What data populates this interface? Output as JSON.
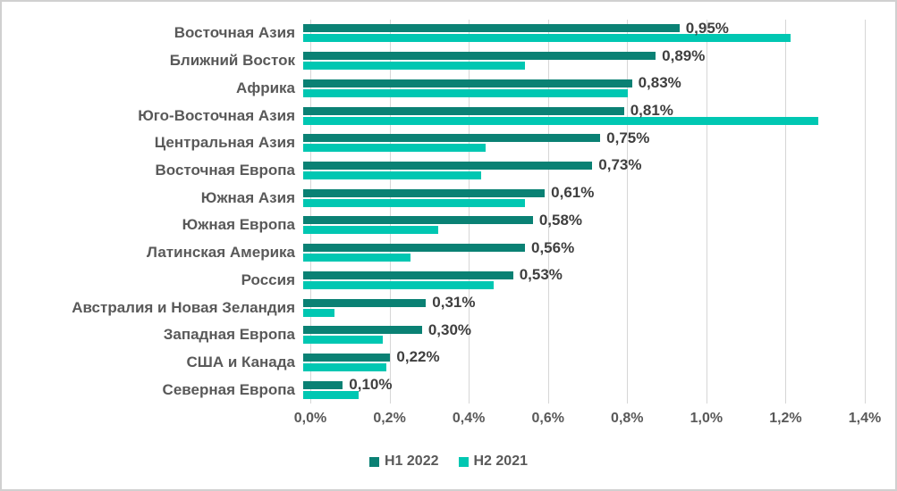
{
  "colors": {
    "series_h1_2022": "#0a8174",
    "series_h2_2021": "#00c7b2",
    "gridline": "#d6d6d6",
    "category_label": "#595959",
    "data_label": "#3f3f3f",
    "axis_label": "#595959",
    "frame_border": "#d0d0d0",
    "background": "#ffffff"
  },
  "chart_data": {
    "type": "bar",
    "orientation": "horizontal",
    "title": "",
    "xlabel": "",
    "ylabel": "",
    "xlim": [
      0,
      1.4
    ],
    "grid": true,
    "legend_position": "bottom",
    "x_ticks": [
      "0,0%",
      "0,2%",
      "0,4%",
      "0,6%",
      "0,8%",
      "1,0%",
      "1,2%",
      "1,4%"
    ],
    "categories": [
      "Восточная Азия",
      "Ближний Восток",
      "Африка",
      "Юго-Восточная Азия",
      "Центральная Азия",
      "Восточная Европа",
      "Южная Азия",
      "Южная Европа",
      "Латинская Америка",
      "Россия",
      "Австралия и Новая Зеландия",
      "Западная Европа",
      "США и Канада",
      "Северная Европа"
    ],
    "series": [
      {
        "name": "H1 2022",
        "color": "#0a8174",
        "values": [
          0.95,
          0.89,
          0.83,
          0.81,
          0.75,
          0.73,
          0.61,
          0.58,
          0.56,
          0.53,
          0.31,
          0.3,
          0.22,
          0.1
        ],
        "data_labels": [
          "0,95%",
          "0,89%",
          "0,83%",
          "0,81%",
          "0,75%",
          "0,73%",
          "0,61%",
          "0,58%",
          "0,56%",
          "0,53%",
          "0,31%",
          "0,30%",
          "0,22%",
          "0,10%"
        ]
      },
      {
        "name": "H2 2021",
        "color": "#00c7b2",
        "values": [
          1.23,
          0.56,
          0.82,
          1.3,
          0.46,
          0.45,
          0.56,
          0.34,
          0.27,
          0.48,
          0.08,
          0.2,
          0.21,
          0.14
        ],
        "data_labels": []
      }
    ]
  }
}
